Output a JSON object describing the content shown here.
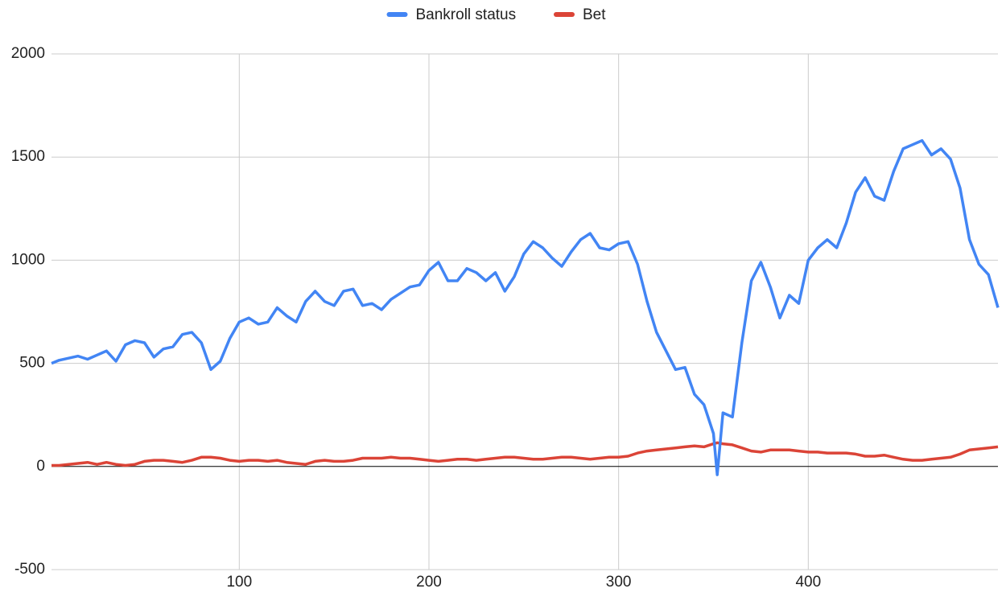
{
  "chart_data": {
    "type": "line",
    "x": [
      1,
      5,
      10,
      15,
      20,
      25,
      30,
      35,
      40,
      45,
      50,
      55,
      60,
      65,
      70,
      75,
      80,
      85,
      90,
      95,
      100,
      105,
      110,
      115,
      120,
      125,
      130,
      135,
      140,
      145,
      150,
      155,
      160,
      165,
      170,
      175,
      180,
      185,
      190,
      195,
      200,
      205,
      210,
      215,
      220,
      225,
      230,
      235,
      240,
      245,
      250,
      255,
      260,
      265,
      270,
      275,
      280,
      285,
      290,
      295,
      300,
      305,
      310,
      315,
      320,
      325,
      330,
      335,
      340,
      345,
      350,
      352,
      355,
      360,
      365,
      370,
      375,
      380,
      385,
      390,
      395,
      400,
      405,
      410,
      415,
      420,
      425,
      430,
      435,
      440,
      445,
      450,
      455,
      460,
      465,
      470,
      475,
      480,
      485,
      490,
      495,
      500
    ],
    "series": [
      {
        "name": "Bankroll status",
        "color": "#4285f4",
        "values": [
          500,
          515,
          525,
          535,
          520,
          540,
          560,
          510,
          590,
          610,
          600,
          530,
          570,
          580,
          640,
          650,
          600,
          470,
          510,
          620,
          700,
          720,
          690,
          700,
          770,
          730,
          700,
          800,
          850,
          800,
          780,
          850,
          860,
          780,
          790,
          760,
          810,
          840,
          870,
          880,
          950,
          990,
          900,
          900,
          960,
          940,
          900,
          940,
          850,
          920,
          1030,
          1090,
          1060,
          1010,
          970,
          1040,
          1100,
          1130,
          1060,
          1050,
          1080,
          1090,
          980,
          800,
          650,
          560,
          470,
          480,
          350,
          300,
          160,
          -40,
          260,
          240,
          600,
          900,
          990,
          870,
          720,
          830,
          790,
          1000,
          1060,
          1100,
          1060,
          1180,
          1330,
          1400,
          1310,
          1290,
          1430,
          1540,
          1560,
          1580,
          1510,
          1540,
          1490,
          1350,
          1100,
          980,
          930,
          770
        ]
      },
      {
        "name": "Bet",
        "color": "#db4437",
        "values": [
          5,
          5,
          10,
          15,
          20,
          10,
          20,
          10,
          5,
          10,
          25,
          30,
          30,
          25,
          20,
          30,
          45,
          45,
          40,
          30,
          25,
          30,
          30,
          25,
          30,
          20,
          15,
          10,
          25,
          30,
          25,
          25,
          30,
          40,
          40,
          40,
          45,
          40,
          40,
          35,
          30,
          25,
          30,
          35,
          35,
          30,
          35,
          40,
          45,
          45,
          40,
          35,
          35,
          40,
          45,
          45,
          40,
          35,
          40,
          45,
          45,
          50,
          65,
          75,
          80,
          85,
          90,
          95,
          100,
          95,
          110,
          115,
          110,
          105,
          90,
          75,
          70,
          80,
          80,
          80,
          75,
          70,
          70,
          65,
          65,
          65,
          60,
          50,
          50,
          55,
          45,
          35,
          30,
          30,
          35,
          40,
          45,
          60,
          80,
          85,
          90,
          95
        ]
      }
    ],
    "xlim": [
      1,
      500
    ],
    "xticks": [
      100,
      200,
      300,
      400
    ],
    "ylim": [
      -500,
      2000
    ],
    "yticks": [
      -500,
      0,
      500,
      1000,
      1500,
      2000
    ],
    "grid": true,
    "legend": "top"
  }
}
